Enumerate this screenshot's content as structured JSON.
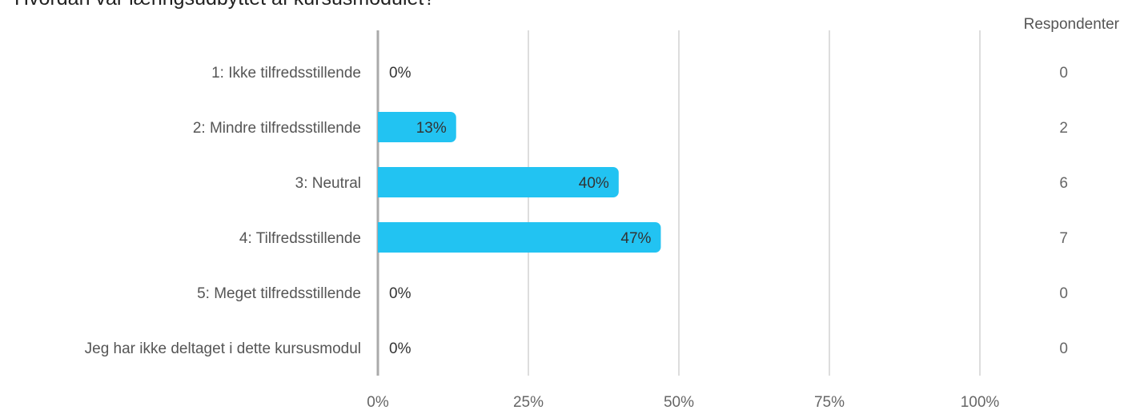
{
  "title": "Hvordan var læringsudbyttet af kursusmodulet?",
  "respondents_header": "Respondenter",
  "chart_data": {
    "type": "bar",
    "orientation": "horizontal",
    "title": "Hvordan var læringsudbyttet af kursusmodulet?",
    "categories": [
      "1: Ikke tilfredsstillende",
      "2: Mindre tilfredsstillende",
      "3: Neutral",
      "4: Tilfredsstillende",
      "5: Meget tilfredsstillende",
      "Jeg har ikke deltaget i dette kursusmodul"
    ],
    "values": [
      0,
      13,
      40,
      47,
      0,
      0
    ],
    "value_labels": [
      "0%",
      "13%",
      "40%",
      "47%",
      "0%",
      "0%"
    ],
    "respondents": [
      "0",
      "2",
      "6",
      "7",
      "0",
      "0"
    ],
    "xlim": [
      0,
      100
    ],
    "x_ticks": [
      0,
      25,
      50,
      75,
      100
    ],
    "x_tick_labels": [
      "0%",
      "25%",
      "50%",
      "75%",
      "100%"
    ],
    "grid": true,
    "bar_color": "#22c3f2",
    "grid_color": "#bbbbbb",
    "axis_color": "#aaaaaa"
  }
}
